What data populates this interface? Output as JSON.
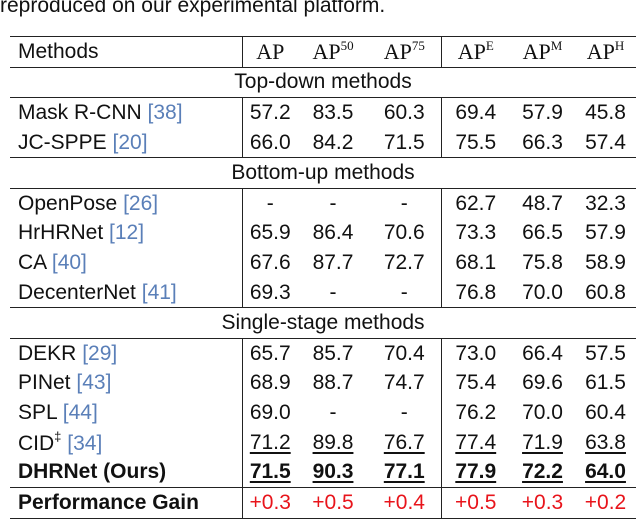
{
  "caption": "reproduced on our experimental platform.",
  "table": {
    "header": {
      "method": "Methods",
      "columns": [
        {
          "base": "AP"
        },
        {
          "base": "AP",
          "sup": "50"
        },
        {
          "base": "AP",
          "sup": "75"
        },
        {
          "base": "AP",
          "sup": "E"
        },
        {
          "base": "AP",
          "sup": "M"
        },
        {
          "base": "AP",
          "sup": "H"
        }
      ]
    },
    "sections": [
      {
        "title": "Top-down methods",
        "rows": [
          {
            "name": "Mask R-CNN",
            "ref": "[38]",
            "values": [
              "57.2",
              "83.5",
              "60.3",
              "69.4",
              "57.9",
              "45.8"
            ]
          },
          {
            "name": "JC-SPPE",
            "ref": "[20]",
            "values": [
              "66.0",
              "84.2",
              "71.5",
              "75.5",
              "66.3",
              "57.4"
            ]
          }
        ]
      },
      {
        "title": "Bottom-up methods",
        "rows": [
          {
            "name": "OpenPose",
            "ref": "[26]",
            "values": [
              "-",
              "-",
              "-",
              "62.7",
              "48.7",
              "32.3"
            ]
          },
          {
            "name": "HrHRNet",
            "ref": "[12]",
            "values": [
              "65.9",
              "86.4",
              "70.6",
              "73.3",
              "66.5",
              "57.9"
            ]
          },
          {
            "name": "CA",
            "ref": "[40]",
            "values": [
              "67.6",
              "87.7",
              "72.7",
              "68.1",
              "75.8",
              "58.9"
            ]
          },
          {
            "name": "DecenterNet",
            "ref": "[41]",
            "values": [
              "69.3",
              "-",
              "-",
              "76.8",
              "70.0",
              "60.8"
            ]
          }
        ]
      },
      {
        "title": "Single-stage methods",
        "rows": [
          {
            "name": "DEKR",
            "ref": "[29]",
            "values": [
              "65.7",
              "85.7",
              "70.4",
              "73.0",
              "66.4",
              "57.5"
            ]
          },
          {
            "name": "PINet",
            "ref": "[43]",
            "values": [
              "68.9",
              "88.7",
              "74.7",
              "75.4",
              "69.6",
              "61.5"
            ]
          },
          {
            "name": "SPL",
            "ref": "[44]",
            "values": [
              "69.0",
              "-",
              "-",
              "76.2",
              "70.0",
              "60.4"
            ]
          },
          {
            "name": "CID",
            "mark": "‡",
            "ref": "[34]",
            "values": [
              "71.2",
              "89.8",
              "76.7",
              "77.4",
              "71.9",
              "63.8"
            ],
            "underline": true
          },
          {
            "name": "DHRNet (Ours)",
            "values": [
              "71.5",
              "90.3",
              "77.1",
              "77.9",
              "72.2",
              "64.0"
            ],
            "bold": true,
            "underline": true
          }
        ]
      }
    ],
    "footer": {
      "name": "Performance Gain",
      "values": [
        "+0.3",
        "+0.5",
        "+0.4",
        "+0.5",
        "+0.3",
        "+0.2"
      ],
      "color": "#e8141b"
    }
  }
}
